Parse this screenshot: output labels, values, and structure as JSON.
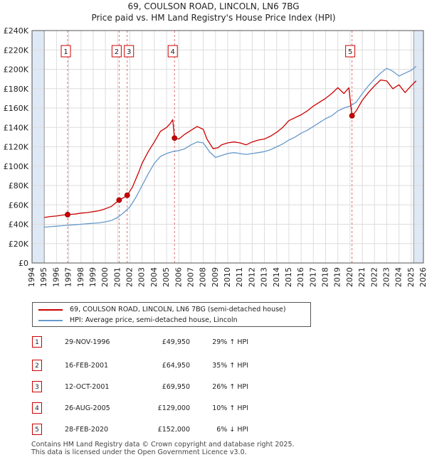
{
  "title_line1": "69, COULSON ROAD, LINCOLN, LN6 7BG",
  "title_line2": "Price paid vs. HM Land Registry's House Price Index (HPI)",
  "legend": {
    "red_label": "69, COULSON ROAD, LINCOLN, LN6 7BG (semi-detached house)",
    "blue_label": "HPI: Average price, semi-detached house, Lincoln"
  },
  "colors": {
    "red": "#cc0000",
    "blue": "#6699cc",
    "shade": "#dfe8f5",
    "grid": "#dddddd"
  },
  "transactions": [
    {
      "num": "1",
      "date": "29-NOV-1996",
      "price": "£49,950",
      "hpi": "29% ↑ HPI"
    },
    {
      "num": "2",
      "date": "16-FEB-2001",
      "price": "£64,950",
      "hpi": "35% ↑ HPI"
    },
    {
      "num": "3",
      "date": "12-OCT-2001",
      "price": "£69,950",
      "hpi": "26% ↑ HPI"
    },
    {
      "num": "4",
      "date": "26-AUG-2005",
      "price": "£129,000",
      "hpi": "10% ↑ HPI"
    },
    {
      "num": "5",
      "date": "28-FEB-2020",
      "price": "£152,000",
      "hpi": "6% ↓ HPI"
    }
  ],
  "footer_line1": "Contains HM Land Registry data © Crown copyright and database right 2025.",
  "footer_line2": "This data is licensed under the Open Government Licence v3.0.",
  "chart_data": {
    "type": "line",
    "title": "Price paid vs. HM Land Registry's House Price Index (HPI)",
    "xlabel": "",
    "ylabel": "",
    "xlim": [
      1994,
      2026
    ],
    "ylim": [
      0,
      240000
    ],
    "x_ticks": [
      1994,
      1995,
      1996,
      1997,
      1998,
      1999,
      2000,
      2001,
      2002,
      2003,
      2004,
      2005,
      2006,
      2007,
      2008,
      2009,
      2010,
      2011,
      2012,
      2013,
      2014,
      2015,
      2016,
      2017,
      2018,
      2019,
      2020,
      2021,
      2022,
      2023,
      2024,
      2025,
      2026
    ],
    "y_ticks": [
      0,
      20000,
      40000,
      60000,
      80000,
      100000,
      120000,
      140000,
      160000,
      180000,
      200000,
      220000,
      240000
    ],
    "y_tick_labels": [
      "£0",
      "£20K",
      "£40K",
      "£60K",
      "£80K",
      "£100K",
      "£120K",
      "£140K",
      "£160K",
      "£180K",
      "£200K",
      "£220K",
      "£240K"
    ],
    "shaded_ranges": [
      [
        1994,
        1995
      ],
      [
        2025.2,
        2026
      ]
    ],
    "series": [
      {
        "name": "69, COULSON ROAD, LINCOLN, LN6 7BG (semi-detached house)",
        "x": [
          1995,
          1995.5,
          1996,
          1996.5,
          1996.91,
          1997.5,
          1998,
          1998.5,
          1999,
          1999.5,
          2000,
          2000.5,
          2001.12,
          2001.5,
          2001.78,
          2002.2,
          2002.7,
          2003,
          2003.5,
          2004,
          2004.5,
          2005,
          2005.3,
          2005.5,
          2005.65,
          2006,
          2006.5,
          2007,
          2007.5,
          2008,
          2008.3,
          2008.8,
          2009.2,
          2009.5,
          2010,
          2010.5,
          2011,
          2011.5,
          2012,
          2012.5,
          2013,
          2013.5,
          2014,
          2014.5,
          2015,
          2015.5,
          2016,
          2016.5,
          2017,
          2017.5,
          2018,
          2018.5,
          2019,
          2019.5,
          2019.9,
          2020.16,
          2020.5,
          2021,
          2021.5,
          2022,
          2022.5,
          2023,
          2023.5,
          2024,
          2024.5,
          2025,
          2025.4
        ],
        "values": [
          47000,
          48000,
          48500,
          49500,
          49950,
          50500,
          51500,
          52000,
          53000,
          54000,
          56000,
          58500,
          64950,
          67500,
          69950,
          78000,
          93000,
          103000,
          115000,
          125000,
          136000,
          140000,
          144000,
          148000,
          129000,
          128000,
          133000,
          137000,
          141000,
          138000,
          128000,
          118000,
          119000,
          122000,
          124000,
          125000,
          124000,
          122000,
          125000,
          127000,
          128000,
          131000,
          135000,
          140000,
          147000,
          150000,
          153000,
          157000,
          162000,
          166000,
          170000,
          175000,
          181000,
          175000,
          181000,
          152000,
          157000,
          168000,
          176000,
          183000,
          189000,
          188000,
          180000,
          184000,
          176000,
          183000,
          188000
        ]
      },
      {
        "name": "HPI: Average price, semi-detached house, Lincoln",
        "x": [
          1995,
          1995.5,
          1996,
          1996.5,
          1997,
          1997.5,
          1998,
          1998.5,
          1999,
          1999.5,
          2000,
          2000.5,
          2001,
          2001.5,
          2002,
          2002.5,
          2003,
          2003.5,
          2004,
          2004.5,
          2005,
          2005.5,
          2006,
          2006.5,
          2007,
          2007.5,
          2008,
          2008.5,
          2009,
          2009.5,
          2010,
          2010.5,
          2011,
          2011.5,
          2012,
          2012.5,
          2013,
          2013.5,
          2014,
          2014.5,
          2015,
          2015.5,
          2016,
          2016.5,
          2017,
          2017.5,
          2018,
          2018.5,
          2019,
          2019.5,
          2020,
          2020.5,
          2021,
          2021.5,
          2022,
          2022.5,
          2023,
          2023.5,
          2024,
          2024.5,
          2025,
          2025.4
        ],
        "values": [
          37000,
          37500,
          38000,
          38500,
          39000,
          39500,
          40000,
          40500,
          41000,
          41500,
          42500,
          44000,
          47000,
          52000,
          58000,
          68000,
          80000,
          92000,
          103000,
          110000,
          113000,
          115000,
          116000,
          118000,
          122000,
          125000,
          124000,
          115000,
          109000,
          111000,
          113000,
          114000,
          113000,
          112000,
          113000,
          114000,
          115000,
          117000,
          120000,
          123000,
          127000,
          130000,
          134000,
          137000,
          141000,
          145000,
          149000,
          152000,
          157000,
          160000,
          162000,
          166000,
          175000,
          183000,
          190000,
          196000,
          201000,
          198000,
          193000,
          196000,
          199000,
          203000
        ]
      }
    ],
    "markers": [
      {
        "label": "1",
        "x": 1996.91,
        "y": 49950
      },
      {
        "label": "2",
        "x": 2001.12,
        "y": 64950
      },
      {
        "label": "3",
        "x": 2001.78,
        "y": 69950
      },
      {
        "label": "4",
        "x": 2005.65,
        "y": 129000
      },
      {
        "label": "5",
        "x": 2020.16,
        "y": 152000
      }
    ]
  }
}
